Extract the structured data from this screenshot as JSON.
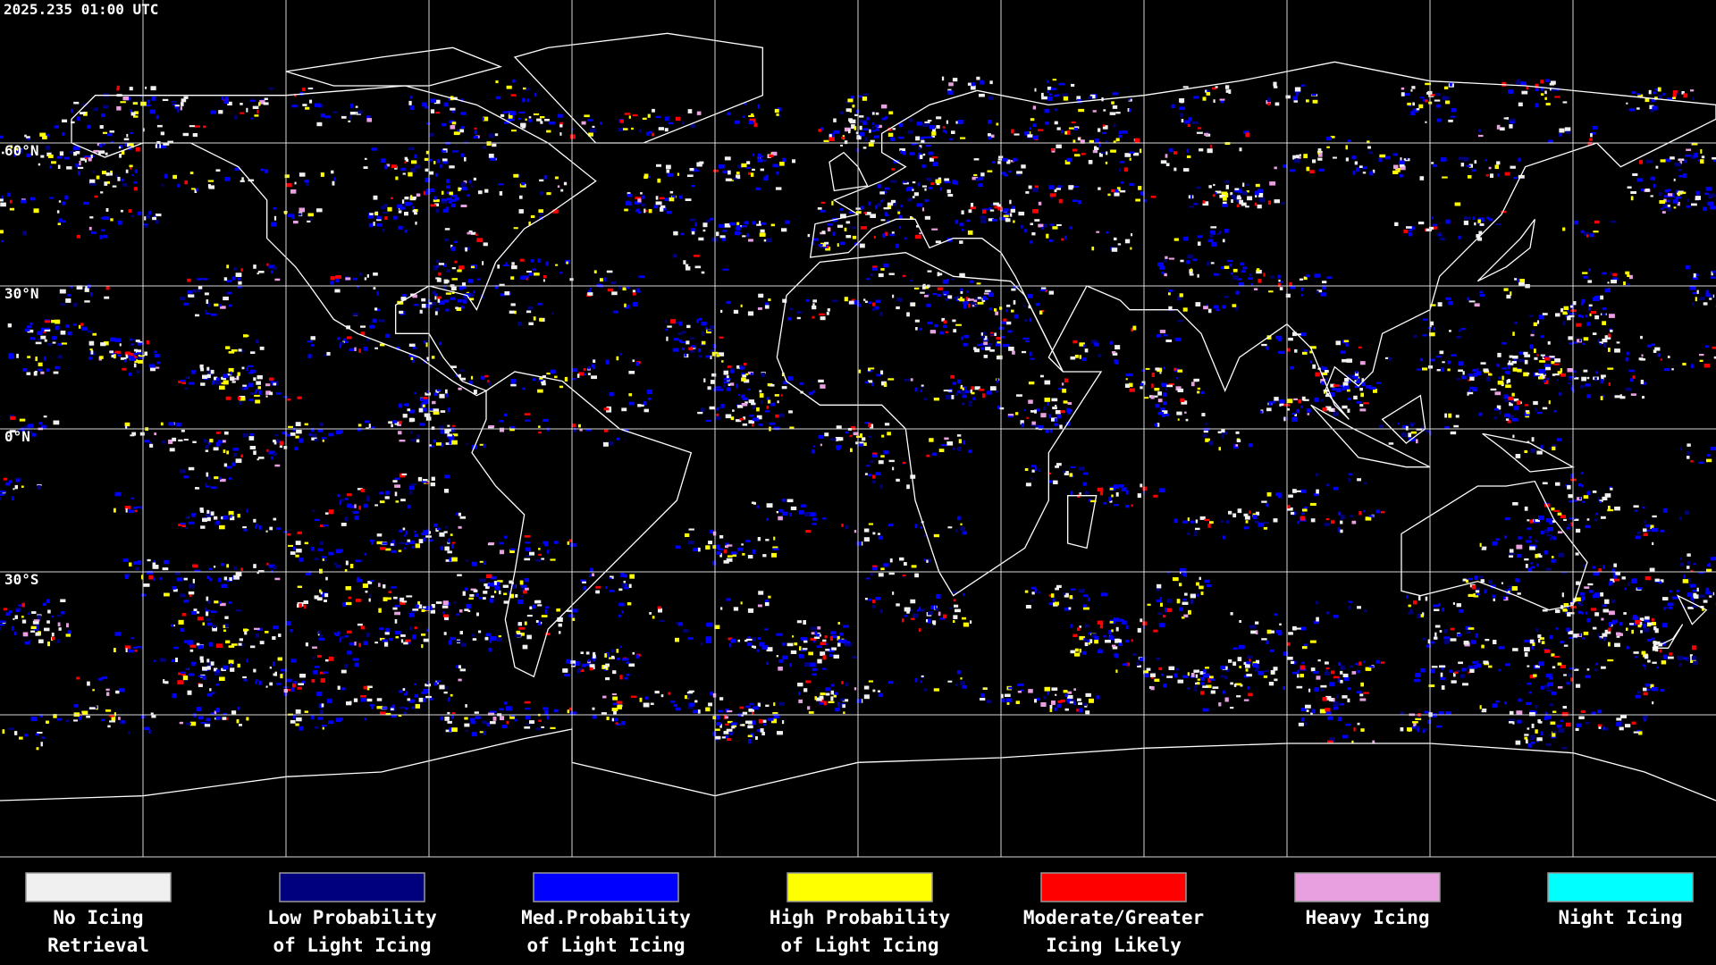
{
  "timestamp": "2025.235 01:00 UTC",
  "latitude_labels": [
    "60°N",
    "30°N",
    "0°N",
    "30°S"
  ],
  "legend": [
    {
      "label": [
        "No Icing",
        "Retrieval"
      ],
      "color": "#f0f0f0"
    },
    {
      "label": [
        "Low Probability",
        "of Light Icing"
      ],
      "color": "#00007f"
    },
    {
      "label": [
        "Med.Probability",
        "of Light Icing"
      ],
      "color": "#0000ff"
    },
    {
      "label": [
        "High Probability",
        "of Light Icing"
      ],
      "color": "#ffff00"
    },
    {
      "label": [
        "Moderate/Greater",
        "Icing Likely"
      ],
      "color": "#ff0000"
    },
    {
      "label": [
        "Heavy Icing"
      ],
      "color": "#e8a0e0"
    },
    {
      "label": [
        "Night Icing"
      ],
      "color": "#00ffff"
    }
  ]
}
